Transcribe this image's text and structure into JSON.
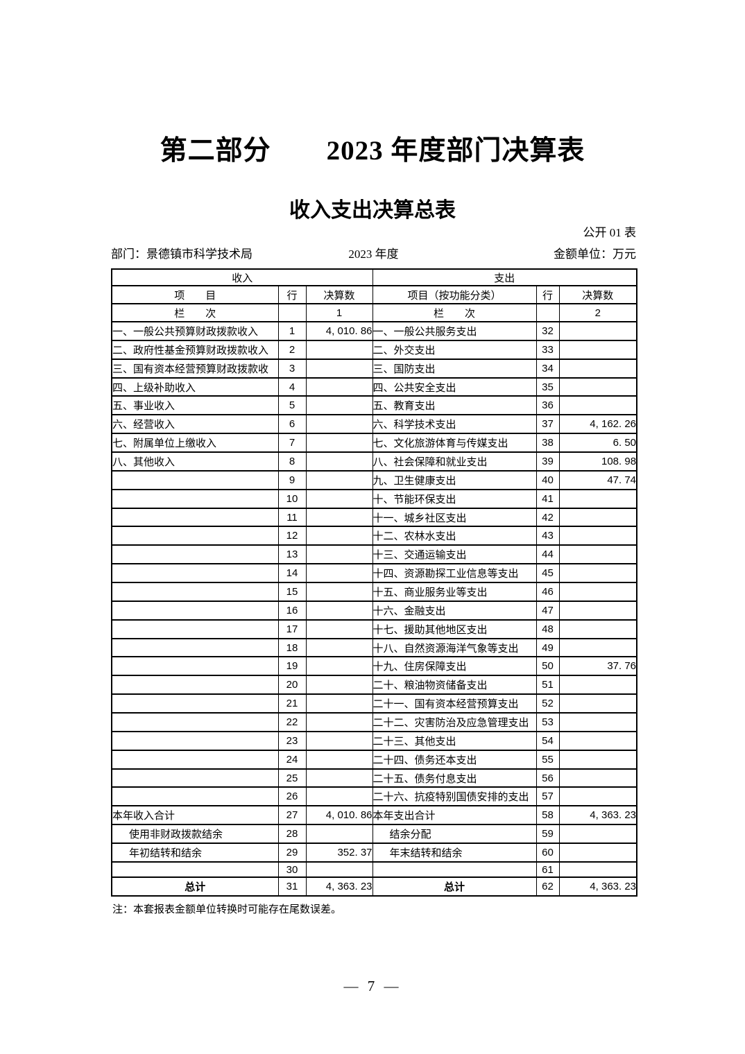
{
  "page": {
    "title": "第二部分　　2023 年度部门决算表",
    "subtitle": "收入支出决算总表",
    "table_code": "公开 01 表",
    "department_label": "部门：景德镇市科学技术局",
    "year_label": "2023 年度",
    "unit_label": "金额单位：万元",
    "note": "注：本套报表金额单位转换时可能存在尾数误差。",
    "page_number": "— 7 —"
  },
  "table": {
    "income_header": "收入",
    "expense_header": "支出",
    "columns": {
      "income_item": "项　　目",
      "income_row": "行",
      "income_amount": "决算数",
      "expense_item": "项目（按功能分类）",
      "expense_row": "行",
      "expense_amount": "决算数"
    },
    "index_row": {
      "income_label": "栏　　次",
      "income_col": "1",
      "expense_label": "栏　　次",
      "expense_col": "2"
    },
    "rows": [
      {
        "income_item": "一、一般公共预算财政拨款收入",
        "income_row": "1",
        "income_value": "4, 010. 86",
        "expense_item": "一、一般公共服务支出",
        "expense_row": "32",
        "expense_value": ""
      },
      {
        "income_item": "二、政府性基金预算财政拨款收入",
        "income_row": "2",
        "income_value": "",
        "expense_item": "二、外交支出",
        "expense_row": "33",
        "expense_value": ""
      },
      {
        "income_item": "三、国有资本经营预算财政拨款收",
        "income_row": "3",
        "income_value": "",
        "expense_item": "三、国防支出",
        "expense_row": "34",
        "expense_value": ""
      },
      {
        "income_item": "四、上级补助收入",
        "income_row": "4",
        "income_value": "",
        "expense_item": "四、公共安全支出",
        "expense_row": "35",
        "expense_value": ""
      },
      {
        "income_item": "五、事业收入",
        "income_row": "5",
        "income_value": "",
        "expense_item": "五、教育支出",
        "expense_row": "36",
        "expense_value": ""
      },
      {
        "income_item": "六、经营收入",
        "income_row": "6",
        "income_value": "",
        "expense_item": "六、科学技术支出",
        "expense_row": "37",
        "expense_value": "4, 162. 26"
      },
      {
        "income_item": "七、附属单位上缴收入",
        "income_row": "7",
        "income_value": "",
        "expense_item": "七、文化旅游体育与传媒支出",
        "expense_row": "38",
        "expense_value": "6. 50"
      },
      {
        "income_item": "八、其他收入",
        "income_row": "8",
        "income_value": "",
        "expense_item": "八、社会保障和就业支出",
        "expense_row": "39",
        "expense_value": "108. 98"
      },
      {
        "income_item": "",
        "income_row": "9",
        "income_value": "",
        "expense_item": "九、卫生健康支出",
        "expense_row": "40",
        "expense_value": "47. 74"
      },
      {
        "income_item": "",
        "income_row": "10",
        "income_value": "",
        "expense_item": "十、节能环保支出",
        "expense_row": "41",
        "expense_value": ""
      },
      {
        "income_item": "",
        "income_row": "11",
        "income_value": "",
        "expense_item": "十一、城乡社区支出",
        "expense_row": "42",
        "expense_value": ""
      },
      {
        "income_item": "",
        "income_row": "12",
        "income_value": "",
        "expense_item": "十二、农林水支出",
        "expense_row": "43",
        "expense_value": ""
      },
      {
        "income_item": "",
        "income_row": "13",
        "income_value": "",
        "expense_item": "十三、交通运输支出",
        "expense_row": "44",
        "expense_value": ""
      },
      {
        "income_item": "",
        "income_row": "14",
        "income_value": "",
        "expense_item": "十四、资源勘探工业信息等支出",
        "expense_row": "45",
        "expense_value": ""
      },
      {
        "income_item": "",
        "income_row": "15",
        "income_value": "",
        "expense_item": "十五、商业服务业等支出",
        "expense_row": "46",
        "expense_value": ""
      },
      {
        "income_item": "",
        "income_row": "16",
        "income_value": "",
        "expense_item": "十六、金融支出",
        "expense_row": "47",
        "expense_value": ""
      },
      {
        "income_item": "",
        "income_row": "17",
        "income_value": "",
        "expense_item": "十七、援助其他地区支出",
        "expense_row": "48",
        "expense_value": ""
      },
      {
        "income_item": "",
        "income_row": "18",
        "income_value": "",
        "expense_item": "十八、自然资源海洋气象等支出",
        "expense_row": "49",
        "expense_value": ""
      },
      {
        "income_item": "",
        "income_row": "19",
        "income_value": "",
        "expense_item": "十九、住房保障支出",
        "expense_row": "50",
        "expense_value": "37. 76"
      },
      {
        "income_item": "",
        "income_row": "20",
        "income_value": "",
        "expense_item": "二十、粮油物资储备支出",
        "expense_row": "51",
        "expense_value": ""
      },
      {
        "income_item": "",
        "income_row": "21",
        "income_value": "",
        "expense_item": "二十一、国有资本经营预算支出",
        "expense_row": "52",
        "expense_value": ""
      },
      {
        "income_item": "",
        "income_row": "22",
        "income_value": "",
        "expense_item": "二十二、灾害防治及应急管理支出",
        "expense_row": "53",
        "expense_value": ""
      },
      {
        "income_item": "",
        "income_row": "23",
        "income_value": "",
        "expense_item": "二十三、其他支出",
        "expense_row": "54",
        "expense_value": ""
      },
      {
        "income_item": "",
        "income_row": "24",
        "income_value": "",
        "expense_item": "二十四、债务还本支出",
        "expense_row": "55",
        "expense_value": ""
      },
      {
        "income_item": "",
        "income_row": "25",
        "income_value": "",
        "expense_item": "二十五、债务付息支出",
        "expense_row": "56",
        "expense_value": ""
      },
      {
        "income_item": "",
        "income_row": "26",
        "income_value": "",
        "expense_item": "二十六、抗疫特别国债安排的支出",
        "expense_row": "57",
        "expense_value": ""
      },
      {
        "income_item": "本年收入合计",
        "income_row": "27",
        "income_value": "4, 010. 86",
        "expense_item": "本年支出合计",
        "expense_row": "58",
        "expense_value": "4, 363. 23"
      },
      {
        "income_item": "使用非财政拨款结余",
        "income_style": "indent",
        "income_row": "28",
        "income_value": "",
        "expense_item": "结余分配",
        "expense_style": "indent",
        "expense_row": "59",
        "expense_value": ""
      },
      {
        "income_item": "年初结转和结余",
        "income_style": "indent",
        "income_row": "29",
        "income_value": "352. 37",
        "expense_item": "年末结转和结余",
        "expense_style": "indent",
        "expense_row": "60",
        "expense_value": ""
      },
      {
        "income_item": "",
        "income_row": "30",
        "income_value": "",
        "expense_item": "",
        "expense_row": "61",
        "expense_value": ""
      },
      {
        "income_item": "总计",
        "income_style": "total",
        "income_row": "31",
        "income_value": "4, 363. 23",
        "expense_item": "总计",
        "expense_style": "total",
        "expense_row": "62",
        "expense_value": "4, 363. 23"
      }
    ]
  }
}
